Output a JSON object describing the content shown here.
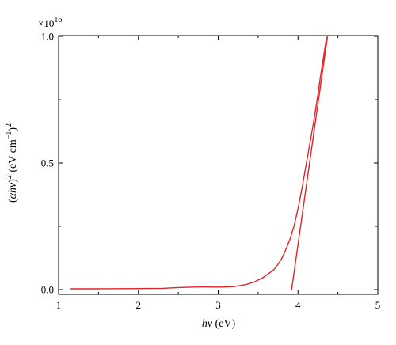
{
  "chart_data": {
    "type": "line",
    "xlabel_italic": "hν",
    "xlabel_unit": " (eV)",
    "ylabel_parts": {
      "open": "(",
      "alpha": "α",
      "hv": "hν",
      "close": ")",
      "sq1": "2",
      "unit_a": " (eV cm",
      "exp": "−1",
      "unit_b": ")",
      "sq2": "2"
    },
    "multiplier": {
      "base": "×10",
      "exponent": "16"
    },
    "xlim": [
      1,
      5
    ],
    "ylim": [
      0,
      1.0
    ],
    "x_ticks": [
      1,
      2,
      3,
      4,
      5
    ],
    "x_tick_labels": [
      "1",
      "2",
      "3",
      "4",
      "5"
    ],
    "y_ticks": [
      0,
      0.5,
      1.0
    ],
    "y_tick_labels": [
      "0.0",
      "0.5",
      "1.0"
    ],
    "series": [
      {
        "color": "#e0242a",
        "x": [
          1.15,
          1.5,
          2.0,
          2.3,
          2.5,
          2.7,
          2.85,
          2.95,
          3.05,
          3.2,
          3.35,
          3.45,
          3.55,
          3.62,
          3.7,
          3.75,
          3.8,
          3.85,
          3.9,
          3.95,
          4.0,
          4.05,
          4.1,
          4.15,
          4.2,
          4.25,
          4.28,
          4.32,
          4.35,
          4.37
        ],
        "values": [
          0.003,
          0.003,
          0.004,
          0.005,
          0.008,
          0.01,
          0.011,
          0.01,
          0.01,
          0.012,
          0.02,
          0.03,
          0.045,
          0.06,
          0.08,
          0.1,
          0.125,
          0.16,
          0.2,
          0.25,
          0.32,
          0.4,
          0.49,
          0.58,
          0.67,
          0.77,
          0.84,
          0.92,
          0.98,
          1.0
        ]
      },
      {
        "color": "#e0242a",
        "x": [
          3.92,
          4.37
        ],
        "values": [
          0.0,
          1.0
        ]
      }
    ]
  }
}
